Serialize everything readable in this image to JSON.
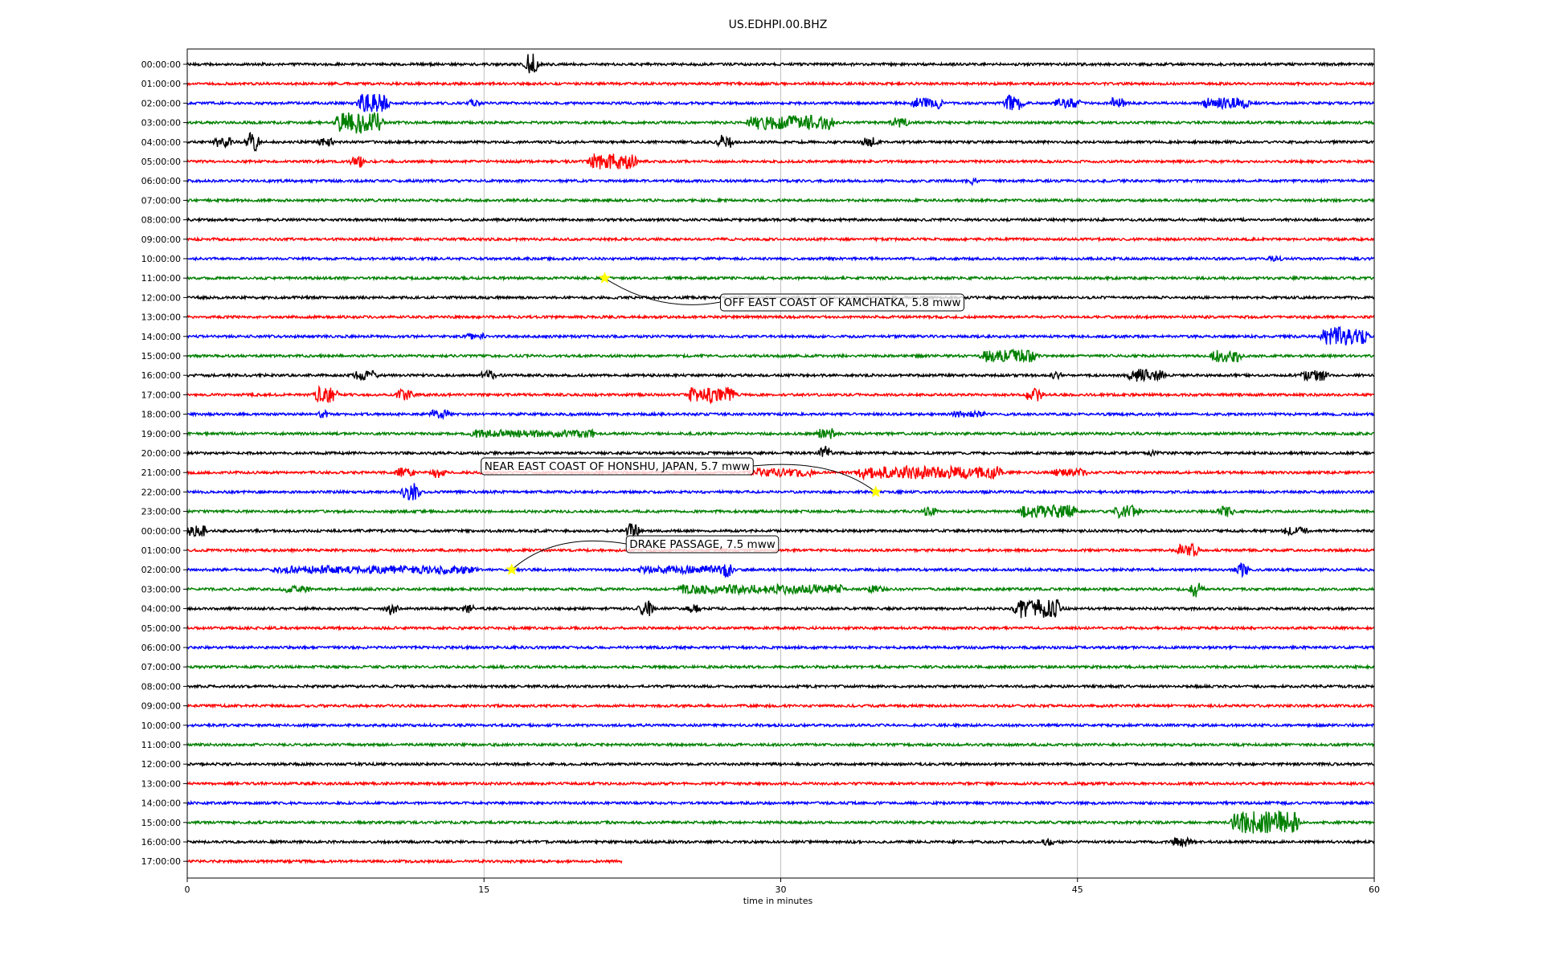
{
  "chart_data": {
    "type": "line",
    "title": "US.EDHPI.00.BHZ",
    "xlabel": "time in minutes",
    "ylabel": "",
    "xlim": [
      0,
      60
    ],
    "x_ticks": [
      0,
      15,
      30,
      45,
      60
    ],
    "grid": "vertical",
    "row_labels": [
      "00:00:00",
      "01:00:00",
      "02:00:00",
      "03:00:00",
      "04:00:00",
      "05:00:00",
      "06:00:00",
      "07:00:00",
      "08:00:00",
      "09:00:00",
      "10:00:00",
      "11:00:00",
      "12:00:00",
      "13:00:00",
      "14:00:00",
      "15:00:00",
      "16:00:00",
      "17:00:00",
      "18:00:00",
      "19:00:00",
      "20:00:00",
      "21:00:00",
      "22:00:00",
      "23:00:00",
      "00:00:00",
      "01:00:00",
      "02:00:00",
      "03:00:00",
      "04:00:00",
      "05:00:00",
      "06:00:00",
      "07:00:00",
      "08:00:00",
      "09:00:00",
      "10:00:00",
      "11:00:00",
      "12:00:00",
      "13:00:00",
      "14:00:00",
      "15:00:00",
      "16:00:00",
      "17:00:00"
    ],
    "trace_colors": [
      "#000000",
      "#ff0000",
      "#0000ff",
      "#008000"
    ],
    "last_row_end_minute": 22,
    "events": [
      {
        "row": 11,
        "minute": 21.1,
        "label": "OFF EAST COAST OF KAMCHATKA, 5.8 mww",
        "marker_color": "#ffff00"
      },
      {
        "row": 22,
        "minute": 34.8,
        "label": "NEAR EAST COAST OF HONSHU, JAPAN, 5.7 mww",
        "marker_color": "#ffff00"
      },
      {
        "row": 26,
        "minute": 16.4,
        "label": "DRAKE PASSAGE, 7.5 mww",
        "marker_color": "#ffff00"
      }
    ],
    "bursts": [
      {
        "row": 0,
        "minute": 17.4,
        "amp": 14,
        "dur": 0.3
      },
      {
        "row": 2,
        "minute": 9.4,
        "amp": 12,
        "dur": 1.2
      },
      {
        "row": 2,
        "minute": 14.5,
        "amp": 4,
        "dur": 0.4
      },
      {
        "row": 2,
        "minute": 37.4,
        "amp": 7,
        "dur": 1.2
      },
      {
        "row": 2,
        "minute": 41.8,
        "amp": 10,
        "dur": 0.6
      },
      {
        "row": 2,
        "minute": 44.5,
        "amp": 6,
        "dur": 1.0
      },
      {
        "row": 2,
        "minute": 47.0,
        "amp": 8,
        "dur": 0.4
      },
      {
        "row": 2,
        "minute": 52.5,
        "amp": 7,
        "dur": 2.0
      },
      {
        "row": 3,
        "minute": 8.7,
        "amp": 14,
        "dur": 2.0
      },
      {
        "row": 3,
        "minute": 30.5,
        "amp": 9,
        "dur": 4.0
      },
      {
        "row": 3,
        "minute": 36.0,
        "amp": 7,
        "dur": 0.5
      },
      {
        "row": 4,
        "minute": 1.8,
        "amp": 7,
        "dur": 0.6
      },
      {
        "row": 4,
        "minute": 3.3,
        "amp": 12,
        "dur": 0.3
      },
      {
        "row": 4,
        "minute": 7.0,
        "amp": 5,
        "dur": 0.5
      },
      {
        "row": 4,
        "minute": 27.2,
        "amp": 9,
        "dur": 0.4
      },
      {
        "row": 4,
        "minute": 34.5,
        "amp": 6,
        "dur": 0.5
      },
      {
        "row": 5,
        "minute": 8.6,
        "amp": 8,
        "dur": 0.3
      },
      {
        "row": 5,
        "minute": 21.5,
        "amp": 10,
        "dur": 2.0
      },
      {
        "row": 6,
        "minute": 39.7,
        "amp": 5,
        "dur": 0.4
      },
      {
        "row": 10,
        "minute": 55.0,
        "amp": 4,
        "dur": 0.5
      },
      {
        "row": 14,
        "minute": 14.6,
        "amp": 4,
        "dur": 0.8
      },
      {
        "row": 14,
        "minute": 58.5,
        "amp": 12,
        "dur": 2.0
      },
      {
        "row": 15,
        "minute": 41.5,
        "amp": 8,
        "dur": 2.5
      },
      {
        "row": 15,
        "minute": 52.5,
        "amp": 8,
        "dur": 1.2
      },
      {
        "row": 16,
        "minute": 9.0,
        "amp": 6,
        "dur": 1.0
      },
      {
        "row": 16,
        "minute": 15.2,
        "amp": 6,
        "dur": 0.4
      },
      {
        "row": 16,
        "minute": 44.0,
        "amp": 6,
        "dur": 0.3
      },
      {
        "row": 16,
        "minute": 48.5,
        "amp": 8,
        "dur": 1.5
      },
      {
        "row": 16,
        "minute": 57.0,
        "amp": 7,
        "dur": 1.0
      },
      {
        "row": 17,
        "minute": 7.0,
        "amp": 10,
        "dur": 0.8
      },
      {
        "row": 17,
        "minute": 11.0,
        "amp": 7,
        "dur": 0.5
      },
      {
        "row": 17,
        "minute": 26.5,
        "amp": 10,
        "dur": 2.0
      },
      {
        "row": 17,
        "minute": 42.8,
        "amp": 8,
        "dur": 0.5
      },
      {
        "row": 18,
        "minute": 6.8,
        "amp": 5,
        "dur": 0.4
      },
      {
        "row": 18,
        "minute": 12.8,
        "amp": 7,
        "dur": 0.6
      },
      {
        "row": 18,
        "minute": 39.5,
        "amp": 4,
        "dur": 1.5
      },
      {
        "row": 19,
        "minute": 17.5,
        "amp": 5,
        "dur": 6.0
      },
      {
        "row": 19,
        "minute": 32.3,
        "amp": 8,
        "dur": 0.5
      },
      {
        "row": 20,
        "minute": 32.2,
        "amp": 9,
        "dur": 0.3
      },
      {
        "row": 20,
        "minute": 48.9,
        "amp": 5,
        "dur": 0.3
      },
      {
        "row": 21,
        "minute": 11.0,
        "amp": 8,
        "dur": 0.6
      },
      {
        "row": 21,
        "minute": 12.7,
        "amp": 7,
        "dur": 0.3
      },
      {
        "row": 21,
        "minute": 30.0,
        "amp": 5,
        "dur": 3.0
      },
      {
        "row": 21,
        "minute": 37.5,
        "amp": 8,
        "dur": 7.0
      },
      {
        "row": 21,
        "minute": 44.6,
        "amp": 5,
        "dur": 1.5
      },
      {
        "row": 22,
        "minute": 11.3,
        "amp": 12,
        "dur": 0.5
      },
      {
        "row": 23,
        "minute": 37.5,
        "amp": 6,
        "dur": 0.4
      },
      {
        "row": 23,
        "minute": 43.5,
        "amp": 8,
        "dur": 2.5
      },
      {
        "row": 23,
        "minute": 47.5,
        "amp": 8,
        "dur": 1.0
      },
      {
        "row": 23,
        "minute": 52.5,
        "amp": 7,
        "dur": 0.4
      },
      {
        "row": 24,
        "minute": 0.5,
        "amp": 7,
        "dur": 0.8
      },
      {
        "row": 24,
        "minute": 22.5,
        "amp": 9,
        "dur": 0.3
      },
      {
        "row": 24,
        "minute": 56.0,
        "amp": 5,
        "dur": 1.0
      },
      {
        "row": 25,
        "minute": 50.6,
        "amp": 8,
        "dur": 0.8
      },
      {
        "row": 26,
        "minute": 9.5,
        "amp": 5,
        "dur": 10.0
      },
      {
        "row": 26,
        "minute": 25.0,
        "amp": 5,
        "dur": 4.0
      },
      {
        "row": 26,
        "minute": 27.2,
        "amp": 10,
        "dur": 0.3
      },
      {
        "row": 26,
        "minute": 53.3,
        "amp": 9,
        "dur": 0.3
      },
      {
        "row": 27,
        "minute": 5.5,
        "amp": 4,
        "dur": 1.2
      },
      {
        "row": 27,
        "minute": 29.0,
        "amp": 6,
        "dur": 8.0
      },
      {
        "row": 27,
        "minute": 34.8,
        "amp": 5,
        "dur": 0.5
      },
      {
        "row": 27,
        "minute": 51.0,
        "amp": 10,
        "dur": 0.3
      },
      {
        "row": 28,
        "minute": 10.3,
        "amp": 8,
        "dur": 0.3
      },
      {
        "row": 28,
        "minute": 14.2,
        "amp": 6,
        "dur": 0.3
      },
      {
        "row": 28,
        "minute": 23.2,
        "amp": 12,
        "dur": 0.3
      },
      {
        "row": 28,
        "minute": 25.6,
        "amp": 6,
        "dur": 0.3
      },
      {
        "row": 28,
        "minute": 43.0,
        "amp": 12,
        "dur": 2.0
      },
      {
        "row": 39,
        "minute": 54.5,
        "amp": 14,
        "dur": 3.0
      },
      {
        "row": 40,
        "minute": 43.5,
        "amp": 5,
        "dur": 0.3
      },
      {
        "row": 40,
        "minute": 50.3,
        "amp": 6,
        "dur": 0.8
      }
    ]
  }
}
